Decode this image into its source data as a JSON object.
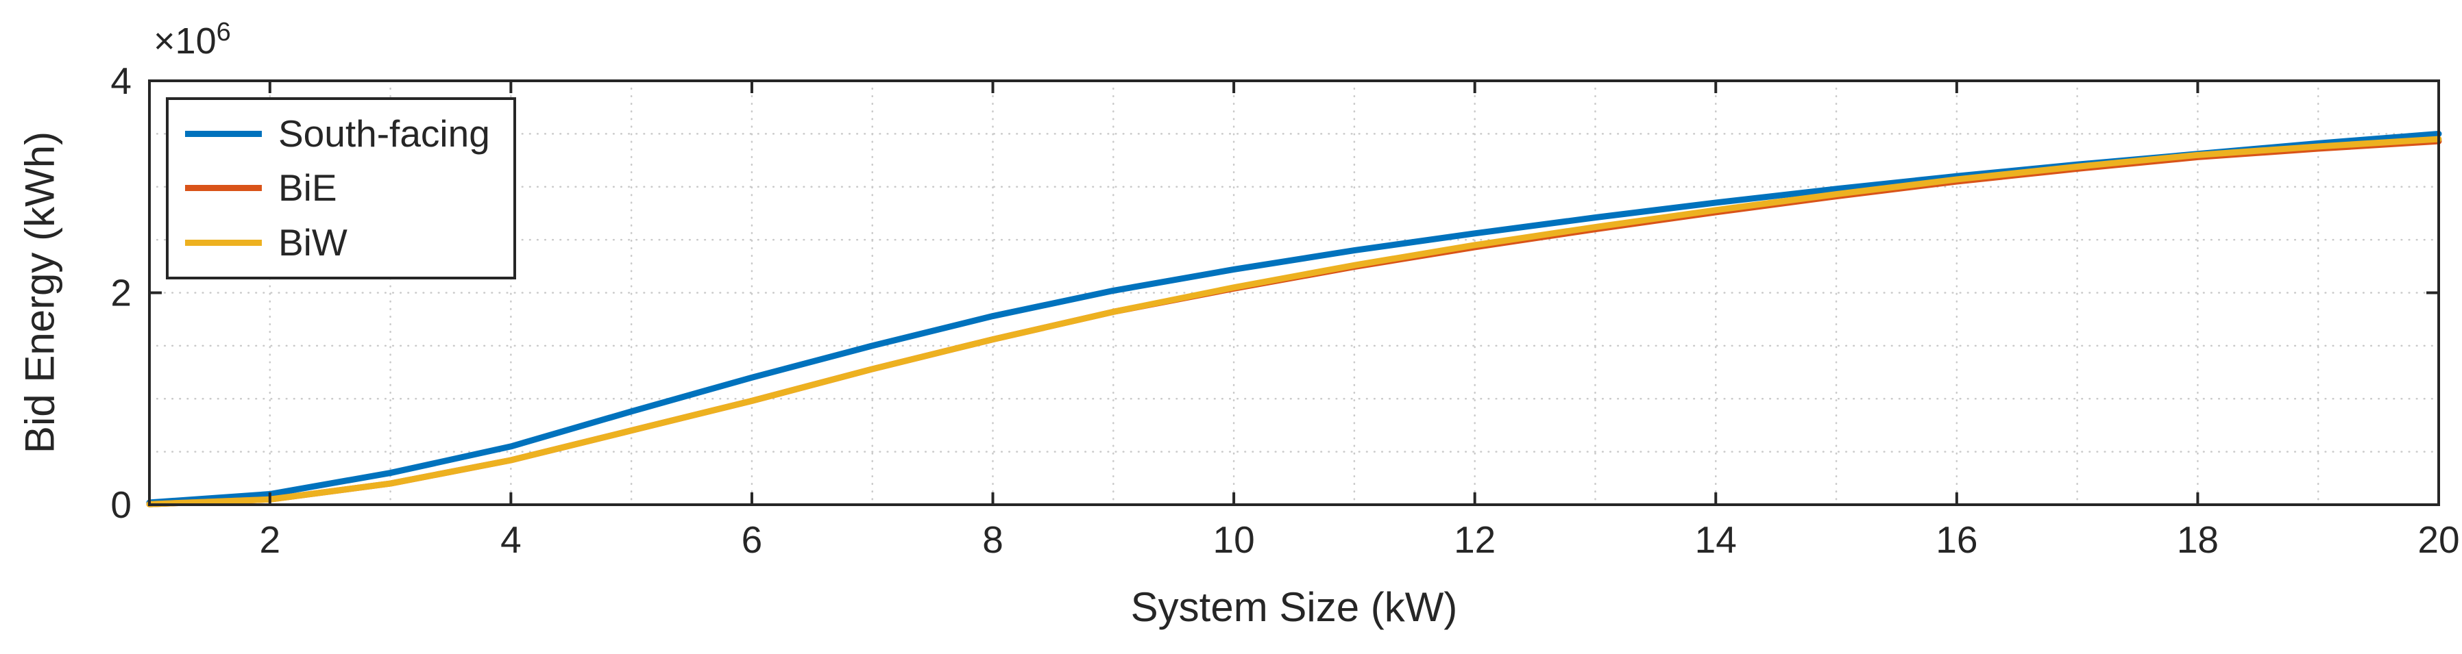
{
  "figure": {
    "background": "#ffffff",
    "axis_color": "#262626",
    "grid_color": "#c9c9c9"
  },
  "chart_data": {
    "type": "line",
    "title": "",
    "xlabel": "System Size (kW)",
    "ylabel": "Bid Energy (kWh)",
    "y_multiplier": {
      "base": "×10",
      "exponent": "6"
    },
    "xlim": [
      1,
      20
    ],
    "ylim": [
      0,
      4000000
    ],
    "x_ticks": [
      2,
      4,
      6,
      8,
      10,
      12,
      14,
      16,
      18,
      20
    ],
    "y_ticks": [
      0,
      2000000,
      4000000
    ],
    "y_tick_labels": [
      "0",
      "2",
      "4"
    ],
    "x_minor_grid_step": 1,
    "y_minor_grid_step": 500000,
    "grid": true,
    "grid_style": "dotted",
    "legend_position": "top-left",
    "x": [
      1,
      2,
      3,
      4,
      5,
      6,
      7,
      8,
      9,
      10,
      11,
      12,
      13,
      14,
      15,
      16,
      17,
      18,
      19,
      20
    ],
    "series": [
      {
        "name": "South-facing",
        "color": "#0072BD",
        "values": [
          20000,
          100000,
          300000,
          550000,
          880000,
          1200000,
          1500000,
          1780000,
          2020000,
          2220000,
          2400000,
          2560000,
          2710000,
          2850000,
          2980000,
          3100000,
          3210000,
          3310000,
          3410000,
          3500000
        ]
      },
      {
        "name": "BiE",
        "color": "#D95319",
        "values": [
          5000,
          50000,
          200000,
          420000,
          700000,
          980000,
          1280000,
          1560000,
          1820000,
          2040000,
          2245000,
          2430000,
          2600000,
          2760000,
          2910000,
          3050000,
          3170000,
          3280000,
          3360000,
          3430000
        ]
      },
      {
        "name": "BiW",
        "color": "#EDB120",
        "values": [
          5000,
          50000,
          200000,
          420000,
          700000,
          980000,
          1280000,
          1560000,
          1820000,
          2050000,
          2260000,
          2450000,
          2620000,
          2780000,
          2930000,
          3070000,
          3190000,
          3300000,
          3380000,
          3450000
        ]
      }
    ]
  }
}
